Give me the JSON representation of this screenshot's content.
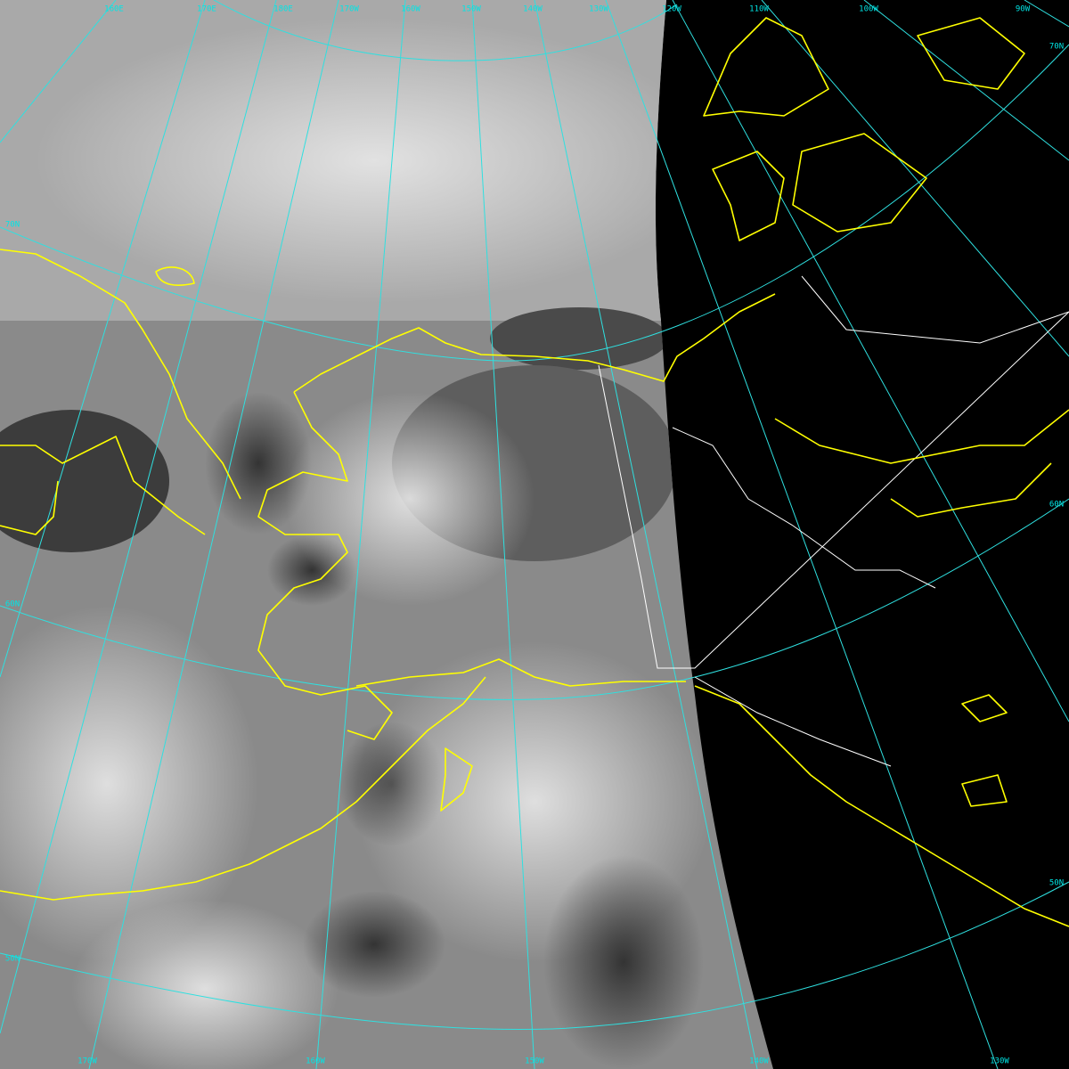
{
  "grid_labels": {
    "top": [
      "160E",
      "170E",
      "180E",
      "170W",
      "160W",
      "150W",
      "140W",
      "130W",
      "120W",
      "110W",
      "100W",
      "90W"
    ],
    "left": [
      "70N",
      "60N",
      "50N"
    ],
    "right": [
      "70N",
      "60N",
      "50N"
    ],
    "bottom": [
      "170W",
      "160W",
      "150W",
      "140W",
      "130W"
    ]
  }
}
